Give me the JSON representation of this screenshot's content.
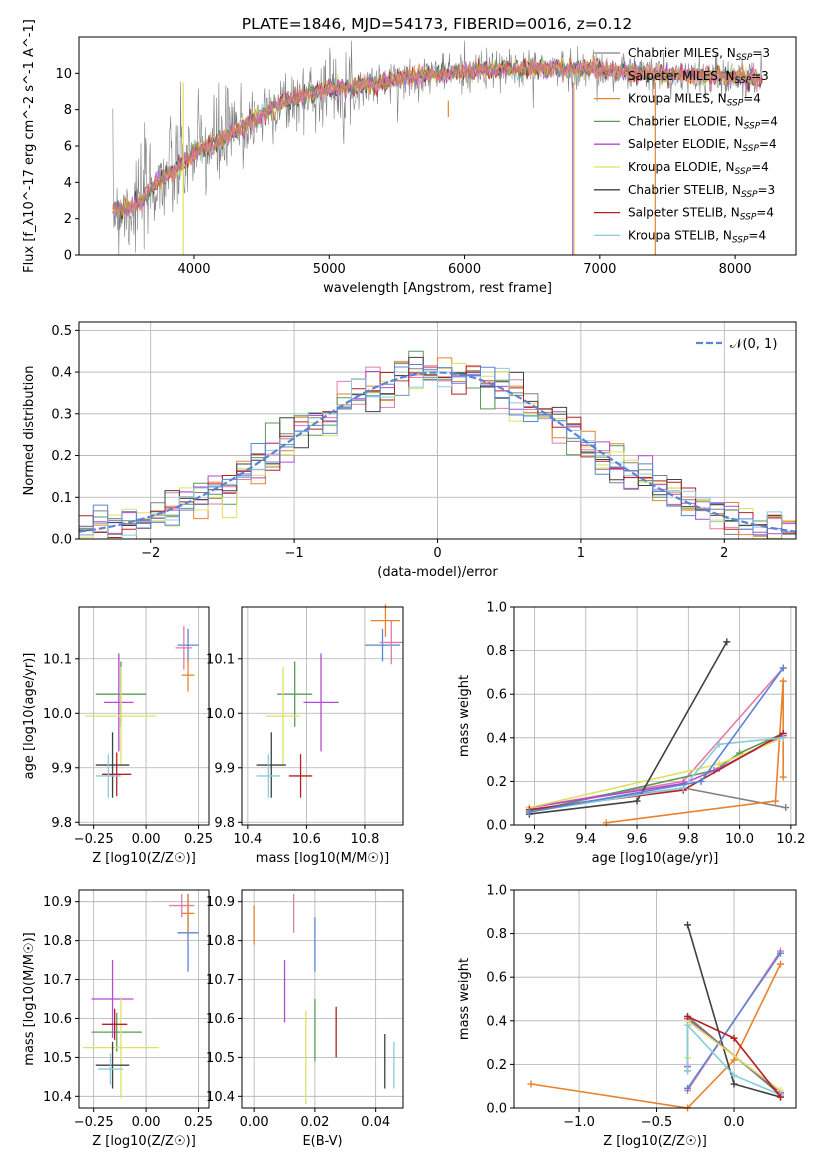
{
  "figure_title": "PLATE=1846, MJD=54173, FIBERID=0016, z=0.12",
  "colors": [
    "#808080",
    "#e27ba6",
    "#e8822c",
    "#5a9a5a",
    "#b44ad1",
    "#e0e060",
    "#404040",
    "#b52020",
    "#88ccdd"
  ],
  "chart_data": [
    {
      "id": "spectrum",
      "type": "line",
      "title": "PLATE=1846, MJD=54173, FIBERID=0016, z=0.12",
      "xlabel": "wavelength [Angstrom, rest frame]",
      "ylabel": "Flux [f_λ10^-17 erg cm^-2 s^-1 A^-1]",
      "xlim": [
        3150,
        8450
      ],
      "ylim": [
        0,
        12
      ],
      "xticks": [
        4000,
        5000,
        6000,
        7000,
        8000
      ],
      "yticks": [
        0,
        2,
        4,
        6,
        8,
        10
      ],
      "grid": false,
      "legend_position": "right",
      "series": [
        {
          "name": "Chabrier MILES, N_SSP=3",
          "color": "#808080"
        },
        {
          "name": "Salpeter MILES, N_SSP=3",
          "color": "#e27ba6"
        },
        {
          "name": "Kroupa MILES, N_SSP=4",
          "color": "#e8822c"
        },
        {
          "name": "Chabrier ELODIE, N_SSP=4",
          "color": "#5a9a5a"
        },
        {
          "name": "Salpeter ELODIE, N_SSP=4",
          "color": "#b44ad1"
        },
        {
          "name": "Kroupa ELODIE, N_SSP=4",
          "color": "#e0e060"
        },
        {
          "name": "Chabrier STELIB, N_SSP=3",
          "color": "#404040"
        },
        {
          "name": "Salpeter STELIB, N_SSP=4",
          "color": "#b52020"
        },
        {
          "name": "Kroupa STELIB, N_SSP=4",
          "color": "#88ccdd"
        }
      ],
      "continuum": {
        "x": [
          3400,
          3500,
          3600,
          3700,
          3800,
          3900,
          4000,
          4200,
          4400,
          4600,
          4800,
          5000,
          5200,
          5400,
          5600,
          5800,
          6000,
          6500,
          7000,
          7500,
          8000,
          8200
        ],
        "y": [
          2.6,
          2.5,
          2.9,
          3.8,
          4.4,
          4.9,
          5.6,
          6.3,
          7.2,
          8.2,
          8.7,
          9.2,
          9.3,
          9.5,
          9.8,
          10.0,
          10.1,
          10.3,
          10.2,
          9.9,
          9.8,
          9.7
        ]
      }
    },
    {
      "id": "residuals",
      "type": "line",
      "xlabel": "(data-model)/error",
      "ylabel": "Normed distribution",
      "xlim": [
        -2.5,
        2.5
      ],
      "ylim": [
        0,
        0.52
      ],
      "xticks": [
        -2,
        -1,
        0,
        1,
        2
      ],
      "yticks": [
        0.0,
        0.1,
        0.2,
        0.3,
        0.4,
        0.5
      ],
      "grid": true,
      "legend_position": "top-right",
      "reference_curve": {
        "name": "𝒩(0, 1)",
        "mean": 0,
        "sigma": 1,
        "color": "#5b84d6"
      },
      "histogram_bin_width": 0.1
    },
    {
      "id": "age_vs_Z",
      "type": "scatter",
      "xlabel": "Z [log10(Z/Z☉)]",
      "ylabel": "age [log10(age/yr)]",
      "xlim": [
        -0.32,
        0.3
      ],
      "ylim": [
        9.795,
        10.195
      ],
      "xticks": [
        -0.25,
        0.0,
        0.25
      ],
      "xticklabels": [
        "−0.25",
        "0.00",
        "0.25"
      ],
      "yticks": [
        9.8,
        9.9,
        10.0,
        10.1
      ],
      "grid": true,
      "points": [
        {
          "x": 0.2,
          "y": 10.125,
          "xerr": 0.05,
          "yerr": 0.03,
          "color": "#5b84d6"
        },
        {
          "x": 0.2,
          "y": 10.07,
          "xerr": 0.03,
          "yerr": 0.03,
          "color": "#e8822c"
        },
        {
          "x": 0.18,
          "y": 10.12,
          "xerr": 0.04,
          "yerr": 0.04,
          "color": "#e27ba6"
        },
        {
          "x": -0.12,
          "y": 10.035,
          "xerr": 0.12,
          "yerr": 0.06,
          "color": "#5a9a5a"
        },
        {
          "x": -0.13,
          "y": 10.02,
          "xerr": 0.07,
          "yerr": 0.09,
          "color": "#b44ad1"
        },
        {
          "x": -0.12,
          "y": 9.995,
          "xerr": 0.17,
          "yerr": 0.09,
          "color": "#e0e060"
        },
        {
          "x": -0.16,
          "y": 9.905,
          "xerr": 0.08,
          "yerr": 0.06,
          "color": "#404040"
        },
        {
          "x": -0.14,
          "y": 9.888,
          "xerr": 0.07,
          "yerr": 0.04,
          "color": "#b52020"
        },
        {
          "x": -0.18,
          "y": 9.885,
          "xerr": 0.06,
          "yerr": 0.04,
          "color": "#88ccdd"
        }
      ]
    },
    {
      "id": "age_vs_mass",
      "type": "scatter",
      "xlabel": "mass [log10(M/M☉)]",
      "xlim": [
        10.38,
        10.93
      ],
      "ylim": [
        9.795,
        10.195
      ],
      "xticks": [
        10.4,
        10.6,
        10.8
      ],
      "yticks": [
        9.8,
        9.9,
        10.0,
        10.1
      ],
      "grid": true,
      "points": [
        {
          "x": 10.86,
          "y": 10.125,
          "xerr": 0.06,
          "yerr": 0.03,
          "color": "#5b84d6"
        },
        {
          "x": 10.87,
          "y": 10.17,
          "xerr": 0.05,
          "yerr": 0.03,
          "color": "#e8822c"
        },
        {
          "x": 10.89,
          "y": 10.13,
          "xerr": 0.04,
          "yerr": 0.04,
          "color": "#e27ba6"
        },
        {
          "x": 10.56,
          "y": 10.035,
          "xerr": 0.06,
          "yerr": 0.06,
          "color": "#5a9a5a"
        },
        {
          "x": 10.65,
          "y": 10.02,
          "xerr": 0.06,
          "yerr": 0.09,
          "color": "#b44ad1"
        },
        {
          "x": 10.52,
          "y": 9.995,
          "xerr": 0.06,
          "yerr": 0.09,
          "color": "#e0e060"
        },
        {
          "x": 10.48,
          "y": 9.905,
          "xerr": 0.05,
          "yerr": 0.06,
          "color": "#404040"
        },
        {
          "x": 10.58,
          "y": 9.885,
          "xerr": 0.04,
          "yerr": 0.04,
          "color": "#b52020"
        },
        {
          "x": 10.47,
          "y": 9.885,
          "xerr": 0.04,
          "yerr": 0.04,
          "color": "#88ccdd"
        }
      ]
    },
    {
      "id": "weight_vs_age",
      "type": "line",
      "xlabel": "age [log10(age/yr)]",
      "ylabel": "mass weight",
      "xlim": [
        9.12,
        10.22
      ],
      "ylim": [
        0,
        1
      ],
      "xticks": [
        9.2,
        9.4,
        9.6,
        9.8,
        10.0,
        10.2
      ],
      "yticks": [
        0.0,
        0.2,
        0.4,
        0.6,
        0.8,
        1.0
      ],
      "grid": true,
      "series": [
        {
          "color": "#808080",
          "x": [
            9.18,
            9.78,
            10.18
          ],
          "y": [
            0.07,
            0.17,
            0.08
          ]
        },
        {
          "color": "#e27ba6",
          "x": [
            9.18,
            9.78,
            10.17
          ],
          "y": [
            0.08,
            0.2,
            0.72
          ]
        },
        {
          "color": "#e8822c",
          "x": [
            9.48,
            10.14,
            10.17,
            10.17
          ],
          "y": [
            0.01,
            0.11,
            0.66,
            0.22
          ]
        },
        {
          "color": "#5a9a5a",
          "x": [
            9.18,
            9.9,
            10.0,
            10.17
          ],
          "y": [
            0.06,
            0.25,
            0.33,
            0.42
          ]
        },
        {
          "color": "#b44ad1",
          "x": [
            9.18,
            9.78,
            9.92,
            10.17
          ],
          "y": [
            0.08,
            0.19,
            0.26,
            0.41
          ]
        },
        {
          "color": "#e0e060",
          "x": [
            9.18,
            9.92,
            10.17
          ],
          "y": [
            0.08,
            0.28,
            0.4
          ]
        },
        {
          "color": "#404040",
          "x": [
            9.18,
            9.6,
            9.95
          ],
          "y": [
            0.05,
            0.11,
            0.84
          ]
        },
        {
          "color": "#b52020",
          "x": [
            9.18,
            9.78,
            10.17
          ],
          "y": [
            0.07,
            0.16,
            0.42
          ]
        },
        {
          "color": "#88ccdd",
          "x": [
            9.18,
            9.78,
            9.92,
            10.17
          ],
          "y": [
            0.06,
            0.17,
            0.37,
            0.4
          ]
        },
        {
          "color": "#5b84d6",
          "x": [
            9.18,
            9.85,
            10.17
          ],
          "y": [
            0.06,
            0.2,
            0.72
          ]
        }
      ]
    },
    {
      "id": "mass_vs_Z",
      "type": "scatter",
      "xlabel": "Z [log10(Z/Z☉)]",
      "ylabel": "mass [log10(M/M☉)]",
      "xlim": [
        -0.32,
        0.3
      ],
      "ylim": [
        10.37,
        10.93
      ],
      "xticks": [
        -0.25,
        0.0,
        0.25
      ],
      "xticklabels": [
        "−0.25",
        "0.00",
        "0.25"
      ],
      "yticks": [
        10.4,
        10.5,
        10.6,
        10.7,
        10.8,
        10.9
      ],
      "grid": true,
      "points": [
        {
          "x": 0.2,
          "y": 10.82,
          "xerr": 0.05,
          "yerr": 0.1,
          "color": "#5b84d6"
        },
        {
          "x": 0.2,
          "y": 10.87,
          "xerr": 0.03,
          "yerr": 0.05,
          "color": "#e8822c"
        },
        {
          "x": 0.17,
          "y": 10.89,
          "xerr": 0.06,
          "yerr": 0.03,
          "color": "#e27ba6"
        },
        {
          "x": -0.14,
          "y": 10.565,
          "xerr": 0.12,
          "yerr": 0.05,
          "color": "#5a9a5a"
        },
        {
          "x": -0.16,
          "y": 10.65,
          "xerr": 0.1,
          "yerr": 0.1,
          "color": "#b44ad1"
        },
        {
          "x": -0.12,
          "y": 10.525,
          "xerr": 0.18,
          "yerr": 0.13,
          "color": "#e0e060"
        },
        {
          "x": -0.16,
          "y": 10.48,
          "xerr": 0.08,
          "yerr": 0.06,
          "color": "#404040"
        },
        {
          "x": -0.15,
          "y": 10.585,
          "xerr": 0.06,
          "yerr": 0.04,
          "color": "#b52020"
        },
        {
          "x": -0.17,
          "y": 10.47,
          "xerr": 0.06,
          "yerr": 0.04,
          "color": "#88ccdd"
        }
      ]
    },
    {
      "id": "mass_vs_ebv",
      "type": "scatter",
      "xlabel": "E(B-V)",
      "xlim": [
        -0.004,
        0.049
      ],
      "ylim": [
        10.37,
        10.93
      ],
      "xticks": [
        0.0,
        0.02,
        0.04
      ],
      "xticklabels": [
        "0.00",
        "0.02",
        "0.04"
      ],
      "yticks": [
        10.4,
        10.5,
        10.6,
        10.7,
        10.8,
        10.9
      ],
      "grid": true,
      "points": [
        {
          "x": 0.0,
          "y": 10.84,
          "yerr": 0.05,
          "color": "#e8822c"
        },
        {
          "x": 0.013,
          "y": 10.87,
          "yerr": 0.05,
          "color": "#e27ba6"
        },
        {
          "x": 0.01,
          "y": 10.67,
          "yerr": 0.08,
          "color": "#b44ad1"
        },
        {
          "x": 0.02,
          "y": 10.79,
          "yerr": 0.07,
          "color": "#5b84d6"
        },
        {
          "x": 0.02,
          "y": 10.57,
          "yerr": 0.08,
          "color": "#5a9a5a"
        },
        {
          "x": 0.017,
          "y": 10.5,
          "yerr": 0.12,
          "color": "#e0e060"
        },
        {
          "x": 0.027,
          "y": 10.565,
          "yerr": 0.065,
          "color": "#b52020"
        },
        {
          "x": 0.043,
          "y": 10.49,
          "yerr": 0.07,
          "color": "#404040"
        },
        {
          "x": 0.046,
          "y": 10.48,
          "yerr": 0.06,
          "color": "#88ccdd"
        }
      ]
    },
    {
      "id": "weight_vs_Z",
      "type": "line",
      "xlabel": "Z [log10(Z/Z☉)]",
      "ylabel": "mass weight",
      "xlim": [
        -1.42,
        0.4
      ],
      "ylim": [
        0,
        1
      ],
      "xticks": [
        -1.0,
        -0.5,
        0.0
      ],
      "xticklabels": [
        "−1.0",
        "−0.5",
        "0.0"
      ],
      "yticks": [
        0.0,
        0.2,
        0.4,
        0.6,
        0.8,
        1.0
      ],
      "grid": true,
      "series": [
        {
          "color": "#e8822c",
          "x": [
            -1.31,
            -0.3,
            0.0,
            0.3
          ],
          "y": [
            0.11,
            0.0,
            0.22,
            0.66
          ]
        },
        {
          "color": "#404040",
          "x": [
            -0.3,
            0.0,
            0.3
          ],
          "y": [
            0.84,
            0.11,
            0.05
          ]
        },
        {
          "color": "#e27ba6",
          "x": [
            -0.3,
            0.3
          ],
          "y": [
            0.08,
            0.72
          ]
        },
        {
          "color": "#5b84d6",
          "x": [
            -0.3,
            0.3
          ],
          "y": [
            0.09,
            0.71
          ]
        },
        {
          "color": "#5a9a5a",
          "x": [
            -0.3,
            -0.3,
            0.3
          ],
          "y": [
            0.17,
            0.42,
            0.06
          ]
        },
        {
          "color": "#b44ad1",
          "x": [
            -0.3,
            -0.3,
            0.3
          ],
          "y": [
            0.19,
            0.41,
            0.07
          ]
        },
        {
          "color": "#e0e060",
          "x": [
            -0.3,
            -0.3,
            0.3
          ],
          "y": [
            0.23,
            0.4,
            0.08
          ]
        },
        {
          "color": "#88ccdd",
          "x": [
            -0.3,
            -0.3,
            0.0,
            0.3
          ],
          "y": [
            0.17,
            0.38,
            0.15,
            0.06
          ]
        },
        {
          "color": "#b52020",
          "x": [
            -0.3,
            0.0,
            0.3
          ],
          "y": [
            0.42,
            0.32,
            0.05
          ]
        }
      ]
    }
  ]
}
